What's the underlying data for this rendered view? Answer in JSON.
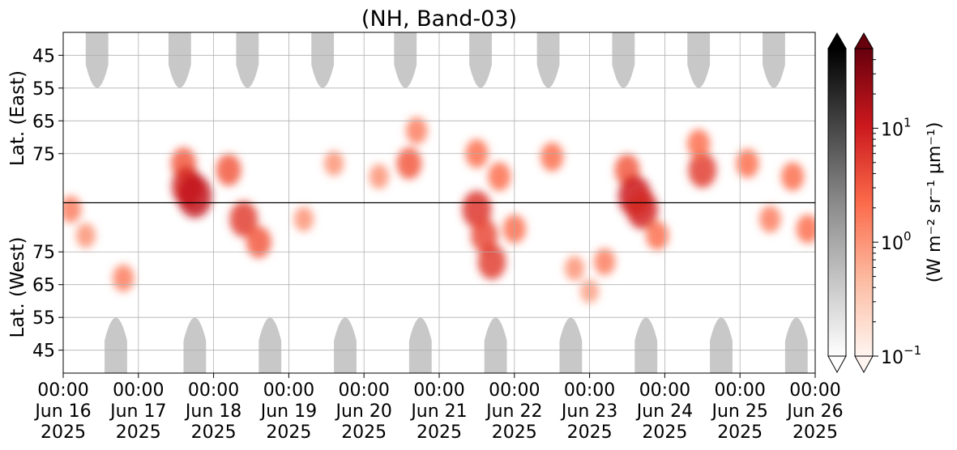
{
  "chart_data": {
    "type": "heatmap",
    "title": "(NH, Band-03)",
    "xlabel": "",
    "x_ticks": [
      "00:00|Jun 16|2025",
      "00:00|Jun 17|2025",
      "00:00|Jun 18|2025",
      "00:00|Jun 19|2025",
      "00:00|Jun 20|2025",
      "00:00|Jun 21|2025",
      "00:00|Jun 22|2025",
      "00:00|Jun 23|2025",
      "00:00|Jun 24|2025",
      "00:00|Jun 25|2025",
      "00:00|Jun 26|2025"
    ],
    "xlim_days": [
      0,
      10
    ],
    "y_east_label": "Lat. (East)",
    "y_west_label": "Lat. (West)",
    "y_east_ticks": [
      45,
      55,
      65,
      75
    ],
    "y_west_ticks": [
      75,
      65,
      55,
      45
    ],
    "ylim_lat": [
      38,
      90
    ],
    "grid": true,
    "divider_line_lat": 90,
    "colorbar_gray": {
      "colormap": "Greys",
      "ticks": [],
      "extend": "both"
    },
    "colorbar_red": {
      "colormap": "Reds",
      "label": "(W m⁻² sr⁻¹ µm⁻¹)",
      "scale": "log",
      "range": [
        0.1,
        50
      ],
      "ticks": [
        {
          "value": 10,
          "base": "10",
          "exp": "1"
        },
        {
          "value": 1,
          "base": "10",
          "exp": "0"
        },
        {
          "value": 0.1,
          "base": "10",
          "exp": "−1"
        }
      ],
      "extend": "both"
    },
    "no_data_regions": {
      "color": "#c8c8c8",
      "east_centers_days": [
        0.45,
        1.55,
        2.45,
        3.45,
        4.55,
        5.55,
        6.45,
        7.45,
        8.45,
        9.45
      ],
      "west_centers_days": [
        0.7,
        1.75,
        2.75,
        3.75,
        4.75,
        5.75,
        6.75,
        7.75,
        8.75,
        9.75
      ],
      "lat_limit": 59
    },
    "intensity_blobs": [
      {
        "day": 1.6,
        "side": "east",
        "lat": 78,
        "value": 3
      },
      {
        "day": 1.65,
        "side": "east",
        "lat": 85,
        "value": 8
      },
      {
        "day": 1.75,
        "side": "east",
        "lat": 88,
        "value": 12
      },
      {
        "day": 2.2,
        "side": "east",
        "lat": 80,
        "value": 3
      },
      {
        "day": 2.4,
        "side": "west",
        "lat": 85,
        "value": 5
      },
      {
        "day": 2.6,
        "side": "west",
        "lat": 78,
        "value": 3
      },
      {
        "day": 0.1,
        "side": "west",
        "lat": 88,
        "value": 1.5
      },
      {
        "day": 0.3,
        "side": "west",
        "lat": 80,
        "value": 1
      },
      {
        "day": 0.8,
        "side": "west",
        "lat": 67,
        "value": 1.5
      },
      {
        "day": 4.6,
        "side": "east",
        "lat": 78,
        "value": 3
      },
      {
        "day": 4.7,
        "side": "east",
        "lat": 68,
        "value": 1.5
      },
      {
        "day": 5.5,
        "side": "east",
        "lat": 75,
        "value": 2
      },
      {
        "day": 5.8,
        "side": "east",
        "lat": 82,
        "value": 2
      },
      {
        "day": 5.5,
        "side": "west",
        "lat": 88,
        "value": 6
      },
      {
        "day": 5.6,
        "side": "west",
        "lat": 80,
        "value": 4
      },
      {
        "day": 5.7,
        "side": "west",
        "lat": 72,
        "value": 5
      },
      {
        "day": 6.0,
        "side": "west",
        "lat": 82,
        "value": 2
      },
      {
        "day": 6.5,
        "side": "east",
        "lat": 76,
        "value": 2
      },
      {
        "day": 6.8,
        "side": "west",
        "lat": 70,
        "value": 1
      },
      {
        "day": 7.0,
        "side": "west",
        "lat": 63,
        "value": 0.8
      },
      {
        "day": 7.2,
        "side": "west",
        "lat": 72,
        "value": 1.5
      },
      {
        "day": 7.5,
        "side": "east",
        "lat": 80,
        "value": 3
      },
      {
        "day": 7.6,
        "side": "east",
        "lat": 88,
        "value": 10
      },
      {
        "day": 7.7,
        "side": "west",
        "lat": 88,
        "value": 8
      },
      {
        "day": 7.9,
        "side": "west",
        "lat": 80,
        "value": 2
      },
      {
        "day": 8.5,
        "side": "east",
        "lat": 80,
        "value": 5
      },
      {
        "day": 8.45,
        "side": "east",
        "lat": 72,
        "value": 2
      },
      {
        "day": 9.1,
        "side": "east",
        "lat": 78,
        "value": 2
      },
      {
        "day": 9.4,
        "side": "west",
        "lat": 85,
        "value": 1.5
      },
      {
        "day": 9.7,
        "side": "east",
        "lat": 82,
        "value": 2
      },
      {
        "day": 9.9,
        "side": "west",
        "lat": 82,
        "value": 2
      },
      {
        "day": 3.2,
        "side": "west",
        "lat": 85,
        "value": 1
      },
      {
        "day": 3.6,
        "side": "east",
        "lat": 78,
        "value": 1
      },
      {
        "day": 4.2,
        "side": "east",
        "lat": 82,
        "value": 1
      }
    ]
  }
}
